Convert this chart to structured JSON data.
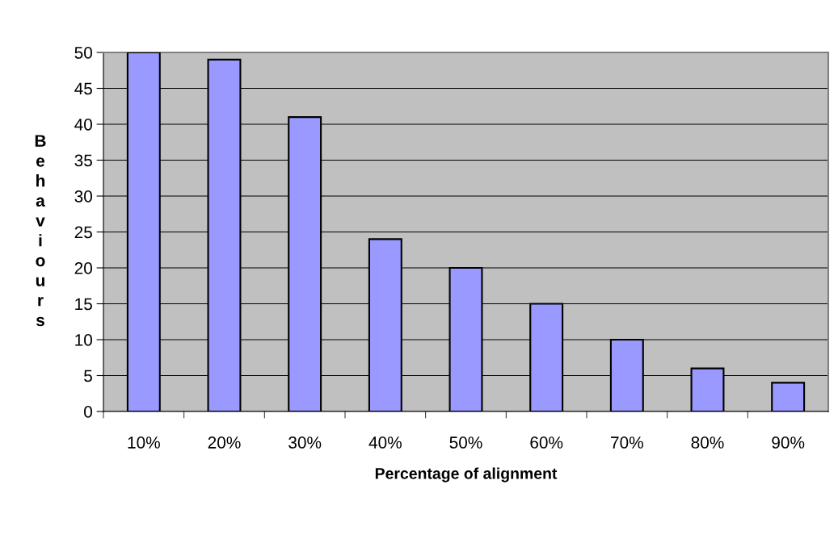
{
  "chart_data": {
    "type": "bar",
    "xlabel": "Percentage of alignment",
    "ylabel": "Behaviours",
    "categories": [
      "10%",
      "20%",
      "30%",
      "40%",
      "50%",
      "60%",
      "70%",
      "80%",
      "90%"
    ],
    "values": [
      50,
      49,
      41,
      24,
      20,
      15,
      10,
      6,
      4
    ],
    "color": "#9999ff",
    "ylim": [
      0,
      50
    ],
    "yticks": [
      0,
      5,
      10,
      15,
      20,
      25,
      30,
      35,
      40,
      45,
      50
    ],
    "grid": "y",
    "legend": false
  }
}
